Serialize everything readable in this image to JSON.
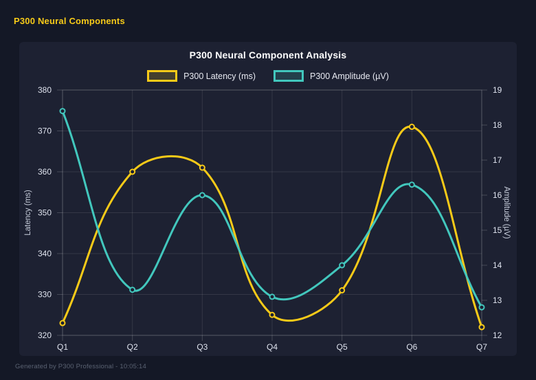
{
  "app": {
    "header_title": "P300 Neural Components",
    "footer": "Generated by P300 Professional - 10:05:14"
  },
  "colors": {
    "background": "#141826",
    "panel": "#1d2132",
    "title_text": "#ffffff",
    "header_text": "#f7ca18",
    "tick_text": "#dfe3ee",
    "axis_title_text": "#c7cddb",
    "footer_text": "#5a6272",
    "grid": "rgba(255,255,255,0.10)",
    "plot_border": "rgba(255,255,255,0.18)",
    "latency_line": "#f7ca18",
    "amplitude_line": "#42c7bd"
  },
  "chart_data": {
    "type": "line",
    "title": "P300 Neural Component Analysis",
    "categories": [
      "Q1",
      "Q2",
      "Q3",
      "Q4",
      "Q5",
      "Q6",
      "Q7"
    ],
    "series": [
      {
        "name": "P300 Latency (ms)",
        "axis": "left",
        "color": "#f7ca18",
        "values": [
          323,
          360,
          361,
          325,
          331,
          371,
          322
        ]
      },
      {
        "name": "P300 Amplitude (µV)",
        "axis": "right",
        "color": "#42c7bd",
        "values": [
          18.4,
          13.3,
          16.0,
          13.1,
          14.0,
          16.3,
          12.8
        ]
      }
    ],
    "left_axis": {
      "label": "Latency (ms)",
      "min": 320,
      "max": 380,
      "ticks": [
        320,
        330,
        340,
        350,
        360,
        370,
        380
      ]
    },
    "right_axis": {
      "label": "Amplitude (µV)",
      "min": 12,
      "max": 19,
      "ticks": [
        12,
        13,
        14,
        15,
        16,
        17,
        18,
        19
      ]
    },
    "grid": true,
    "legend_position": "top",
    "curve": "smooth",
    "line_tension": 0.4
  }
}
